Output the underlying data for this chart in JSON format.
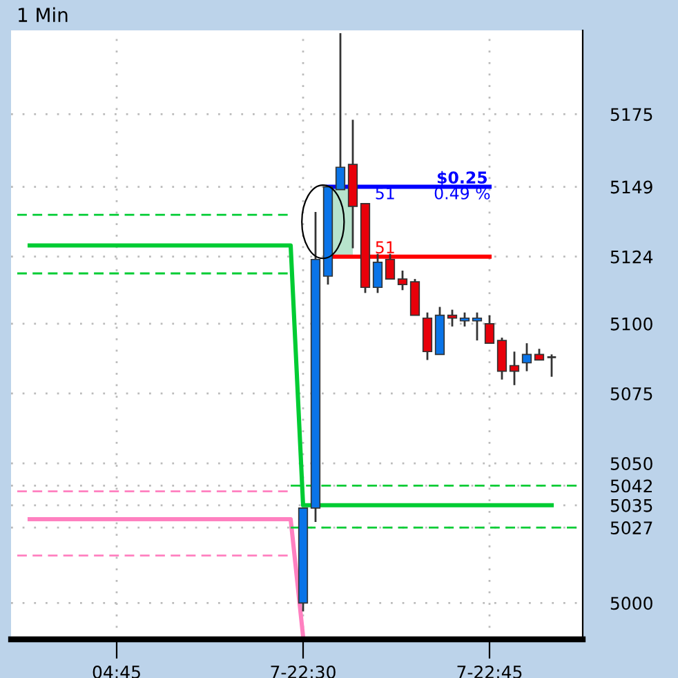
{
  "chart_data": {
    "type": "candlestick",
    "title": "1 Min",
    "categories": [
      null,
      null,
      null,
      null,
      null,
      null,
      null,
      null,
      "04:45",
      null,
      null,
      null,
      null,
      null,
      null,
      null,
      null,
      null,
      null,
      null,
      null,
      null,
      null,
      "7-22:30",
      null,
      null,
      null,
      null,
      null,
      null,
      null,
      null,
      null,
      null,
      null,
      null,
      null,
      null,
      "7-22:45",
      null,
      null,
      null,
      null,
      null,
      null,
      null
    ],
    "ohlc": [
      null,
      null,
      null,
      null,
      null,
      null,
      null,
      null,
      null,
      null,
      null,
      null,
      null,
      null,
      null,
      null,
      null,
      null,
      null,
      null,
      null,
      null,
      null,
      [
        5000,
        5034,
        4997,
        5034
      ],
      [
        5034,
        5140,
        5029,
        5123
      ],
      [
        5117,
        5149,
        5114,
        5149
      ],
      [
        5148,
        5204,
        5148,
        5156
      ],
      [
        5157,
        5173,
        5127,
        5142
      ],
      [
        5143,
        5143,
        5111,
        5113
      ],
      [
        5113,
        5125,
        5111,
        5122
      ],
      [
        5123,
        5125,
        5116,
        5116
      ],
      [
        5116,
        5119,
        5112,
        5114
      ],
      [
        5115,
        5116,
        5103,
        5103
      ],
      [
        5102,
        5104,
        5087,
        5090
      ],
      [
        5089,
        5106,
        5089,
        5103
      ],
      [
        5103,
        5105,
        5099,
        5102
      ],
      [
        5101,
        5104,
        5099,
        5102
      ],
      [
        5101,
        5104,
        5094,
        5102
      ],
      [
        5100,
        5103,
        5093,
        5093
      ],
      [
        5094,
        5095,
        5080,
        5083
      ],
      [
        5085,
        5090,
        5078,
        5083
      ],
      [
        5086,
        5093,
        5083,
        5089
      ],
      [
        5089,
        5091,
        5087,
        5087
      ],
      [
        5088,
        5089,
        5081,
        5088
      ],
      null,
      null
    ],
    "colors": [
      null,
      null,
      null,
      null,
      null,
      null,
      null,
      null,
      null,
      null,
      null,
      null,
      null,
      null,
      null,
      null,
      null,
      null,
      null,
      null,
      null,
      null,
      null,
      "#0a74e8",
      "#0a74e8",
      "#0a74e8",
      "#0a74e8",
      "#e8000a",
      "#e8000a",
      "#0a74e8",
      "#e8000a",
      "#e8000a",
      "#e8000a",
      "#e8000a",
      "#0a74e8",
      "#e8000a",
      "#0a74e8",
      "#0a74e8",
      "#e8000a",
      "#e8000a",
      "#e8000a",
      "#0a74e8",
      "#e8000a",
      "#333333",
      null,
      null
    ],
    "series": [
      {
        "type": "line",
        "color": "#00cc33",
        "line_style": "solid",
        "values": [
          null,
          5128,
          5128,
          5128,
          5128,
          5128,
          5128,
          5128,
          5128,
          5128,
          5128,
          5128,
          5128,
          5128,
          5128,
          5128,
          5128,
          5128,
          5128,
          5128,
          5128,
          5128,
          5128,
          5035,
          5035,
          5035,
          5035,
          5035,
          5035,
          5035,
          5035,
          5035,
          5035,
          5035,
          5035,
          5035,
          5035,
          5035,
          5035,
          5035,
          5035,
          5035,
          5035,
          5035,
          null,
          null
        ]
      },
      {
        "type": "line",
        "color": "#ff80c0",
        "line_style": "solid",
        "values": [
          null,
          5030,
          5030,
          5030,
          5030,
          5030,
          5030,
          5030,
          5030,
          5030,
          5030,
          5030,
          5030,
          5030,
          5030,
          5030,
          5030,
          5030,
          5030,
          5030,
          5030,
          5030,
          5030,
          4988,
          null,
          null,
          null,
          null,
          null,
          null,
          null,
          null,
          null,
          null,
          null,
          null,
          null,
          null,
          null,
          null,
          null,
          null,
          null,
          null,
          null,
          null
        ]
      },
      {
        "type": "line",
        "color": "#00cc33",
        "line_style": "dashed",
        "values": [
          5139,
          5139,
          5139,
          5139,
          5139,
          5139,
          5139,
          5139,
          5139,
          5139,
          5139,
          5139,
          5139,
          5139,
          5139,
          5139,
          5139,
          5139,
          5139,
          5139,
          5139,
          5139,
          5139,
          null,
          null,
          null,
          null,
          null,
          null,
          null,
          null,
          null,
          null,
          null,
          null,
          null,
          null,
          null,
          null,
          null,
          null,
          null,
          null,
          null,
          null,
          null
        ]
      },
      {
        "type": "line",
        "color": "#00cc33",
        "line_style": "dashed",
        "values": [
          5118,
          5118,
          5118,
          5118,
          5118,
          5118,
          5118,
          5118,
          5118,
          5118,
          5118,
          5118,
          5118,
          5118,
          5118,
          5118,
          5118,
          5118,
          5118,
          5118,
          5118,
          5118,
          5118,
          null,
          null,
          null,
          null,
          null,
          null,
          null,
          null,
          null,
          null,
          null,
          null,
          null,
          null,
          null,
          null,
          null,
          null,
          null,
          null,
          null,
          null,
          null
        ]
      },
      {
        "type": "line",
        "color": "#ff80c0",
        "line_style": "dashed",
        "values": [
          5040,
          5040,
          5040,
          5040,
          5040,
          5040,
          5040,
          5040,
          5040,
          5040,
          5040,
          5040,
          5040,
          5040,
          5040,
          5040,
          5040,
          5040,
          5040,
          5040,
          5040,
          5040,
          5040,
          null,
          null,
          null,
          null,
          null,
          null,
          null,
          null,
          null,
          null,
          null,
          null,
          null,
          null,
          null,
          null,
          null,
          null,
          null,
          null,
          null,
          null,
          null
        ]
      },
      {
        "type": "line",
        "color": "#ff80c0",
        "line_style": "dashed",
        "values": [
          5017,
          5017,
          5017,
          5017,
          5017,
          5017,
          5017,
          5017,
          5017,
          5017,
          5017,
          5017,
          5017,
          5017,
          5017,
          5017,
          5017,
          5017,
          5017,
          5017,
          5017,
          5017,
          5017,
          null,
          null,
          null,
          null,
          null,
          null,
          null,
          null,
          null,
          null,
          null,
          null,
          null,
          null,
          null,
          null,
          null,
          null,
          null,
          null,
          null,
          null,
          null
        ]
      },
      {
        "type": "line",
        "color": "#00cc33",
        "line_style": "dashed",
        "values": [
          null,
          null,
          null,
          null,
          null,
          null,
          null,
          null,
          null,
          null,
          null,
          null,
          null,
          null,
          null,
          null,
          null,
          null,
          null,
          null,
          null,
          null,
          5042,
          5042,
          5042,
          5042,
          5042,
          5042,
          5042,
          5042,
          5042,
          5042,
          5042,
          5042,
          5042,
          5042,
          5042,
          5042,
          5042,
          5042,
          5042,
          5042,
          5042,
          5042,
          5042,
          5042
        ]
      },
      {
        "type": "line",
        "color": "#00cc33",
        "line_style": "dashed",
        "values": [
          null,
          null,
          null,
          null,
          null,
          null,
          null,
          null,
          null,
          null,
          null,
          null,
          null,
          null,
          null,
          null,
          null,
          null,
          null,
          null,
          null,
          null,
          5027,
          5027,
          5027,
          5027,
          5027,
          5027,
          5027,
          5027,
          5027,
          5027,
          5027,
          5027,
          5027,
          5027,
          5027,
          5027,
          5027,
          5027,
          5027,
          5027,
          5027,
          5027,
          5027,
          5027
        ]
      },
      {
        "type": "line",
        "color": "#0000ff",
        "line_style": "solid",
        "values": [
          null,
          null,
          null,
          null,
          null,
          null,
          null,
          null,
          null,
          null,
          null,
          null,
          null,
          null,
          null,
          null,
          null,
          null,
          null,
          null,
          null,
          null,
          null,
          null,
          null,
          5149,
          5149,
          5149,
          5149,
          5149,
          5149,
          5149,
          5149,
          5149,
          5149,
          5149,
          5149,
          5149,
          5149,
          null,
          null,
          null,
          null,
          null,
          null,
          null
        ]
      },
      {
        "type": "line",
        "color": "#ff0000",
        "line_style": "solid",
        "values": [
          null,
          null,
          null,
          null,
          null,
          null,
          null,
          null,
          null,
          null,
          null,
          null,
          null,
          null,
          null,
          null,
          null,
          null,
          null,
          null,
          null,
          null,
          null,
          null,
          null,
          5124,
          5124,
          5124,
          5124,
          5124,
          5124,
          5124,
          5124,
          5124,
          5124,
          5124,
          5124,
          5124,
          5124,
          null,
          null,
          null,
          null,
          null,
          null,
          null
        ]
      }
    ],
    "annotations": [
      "$0.25",
      "0.49 %",
      "51",
      "51"
    ],
    "ylim": [
      4987,
      5205
    ],
    "yticks": [
      5000,
      5027,
      5035,
      5042,
      5050,
      5075,
      5100,
      5124,
      5149,
      5175
    ],
    "grid": true
  }
}
